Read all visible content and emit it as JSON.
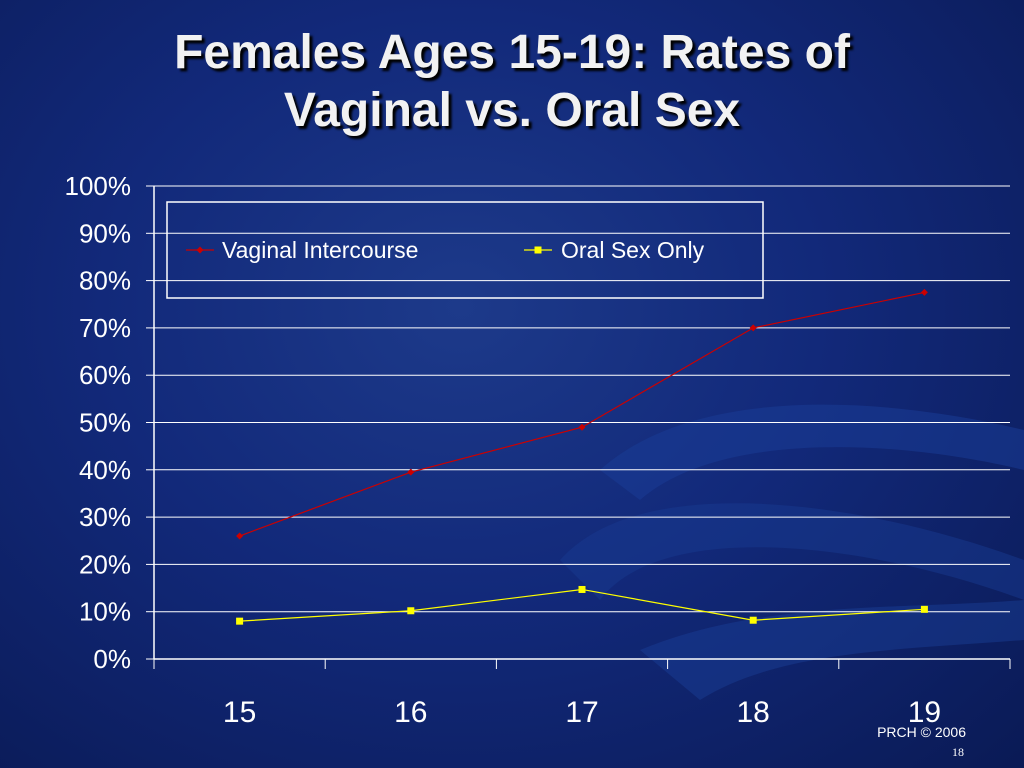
{
  "slide": {
    "title_line1": "Females Ages 15-19: Rates of",
    "title_line2": "Vaginal vs. Oral Sex",
    "credit": "PRCH © 2006",
    "page_number": "18"
  },
  "colors": {
    "background": "#12297a",
    "vaginal": "#cc0000",
    "oral": "#ffff00",
    "axis": "#ffffff"
  },
  "chart_data": {
    "type": "line",
    "categories": [
      "15",
      "16",
      "17",
      "18",
      "19"
    ],
    "series": [
      {
        "name": "Vaginal Intercourse",
        "values": [
          26,
          39.5,
          49,
          70,
          77.5
        ],
        "color": "#cc0000",
        "marker": "diamond"
      },
      {
        "name": "Oral Sex Only",
        "values": [
          8,
          10.2,
          14.7,
          8.2,
          10.5
        ],
        "color": "#ffff00",
        "marker": "square"
      }
    ],
    "yticks": [
      "0%",
      "10%",
      "20%",
      "30%",
      "40%",
      "50%",
      "60%",
      "70%",
      "80%",
      "90%",
      "100%"
    ],
    "ylim": [
      0,
      100
    ],
    "grid": true,
    "legend": "top-left"
  }
}
